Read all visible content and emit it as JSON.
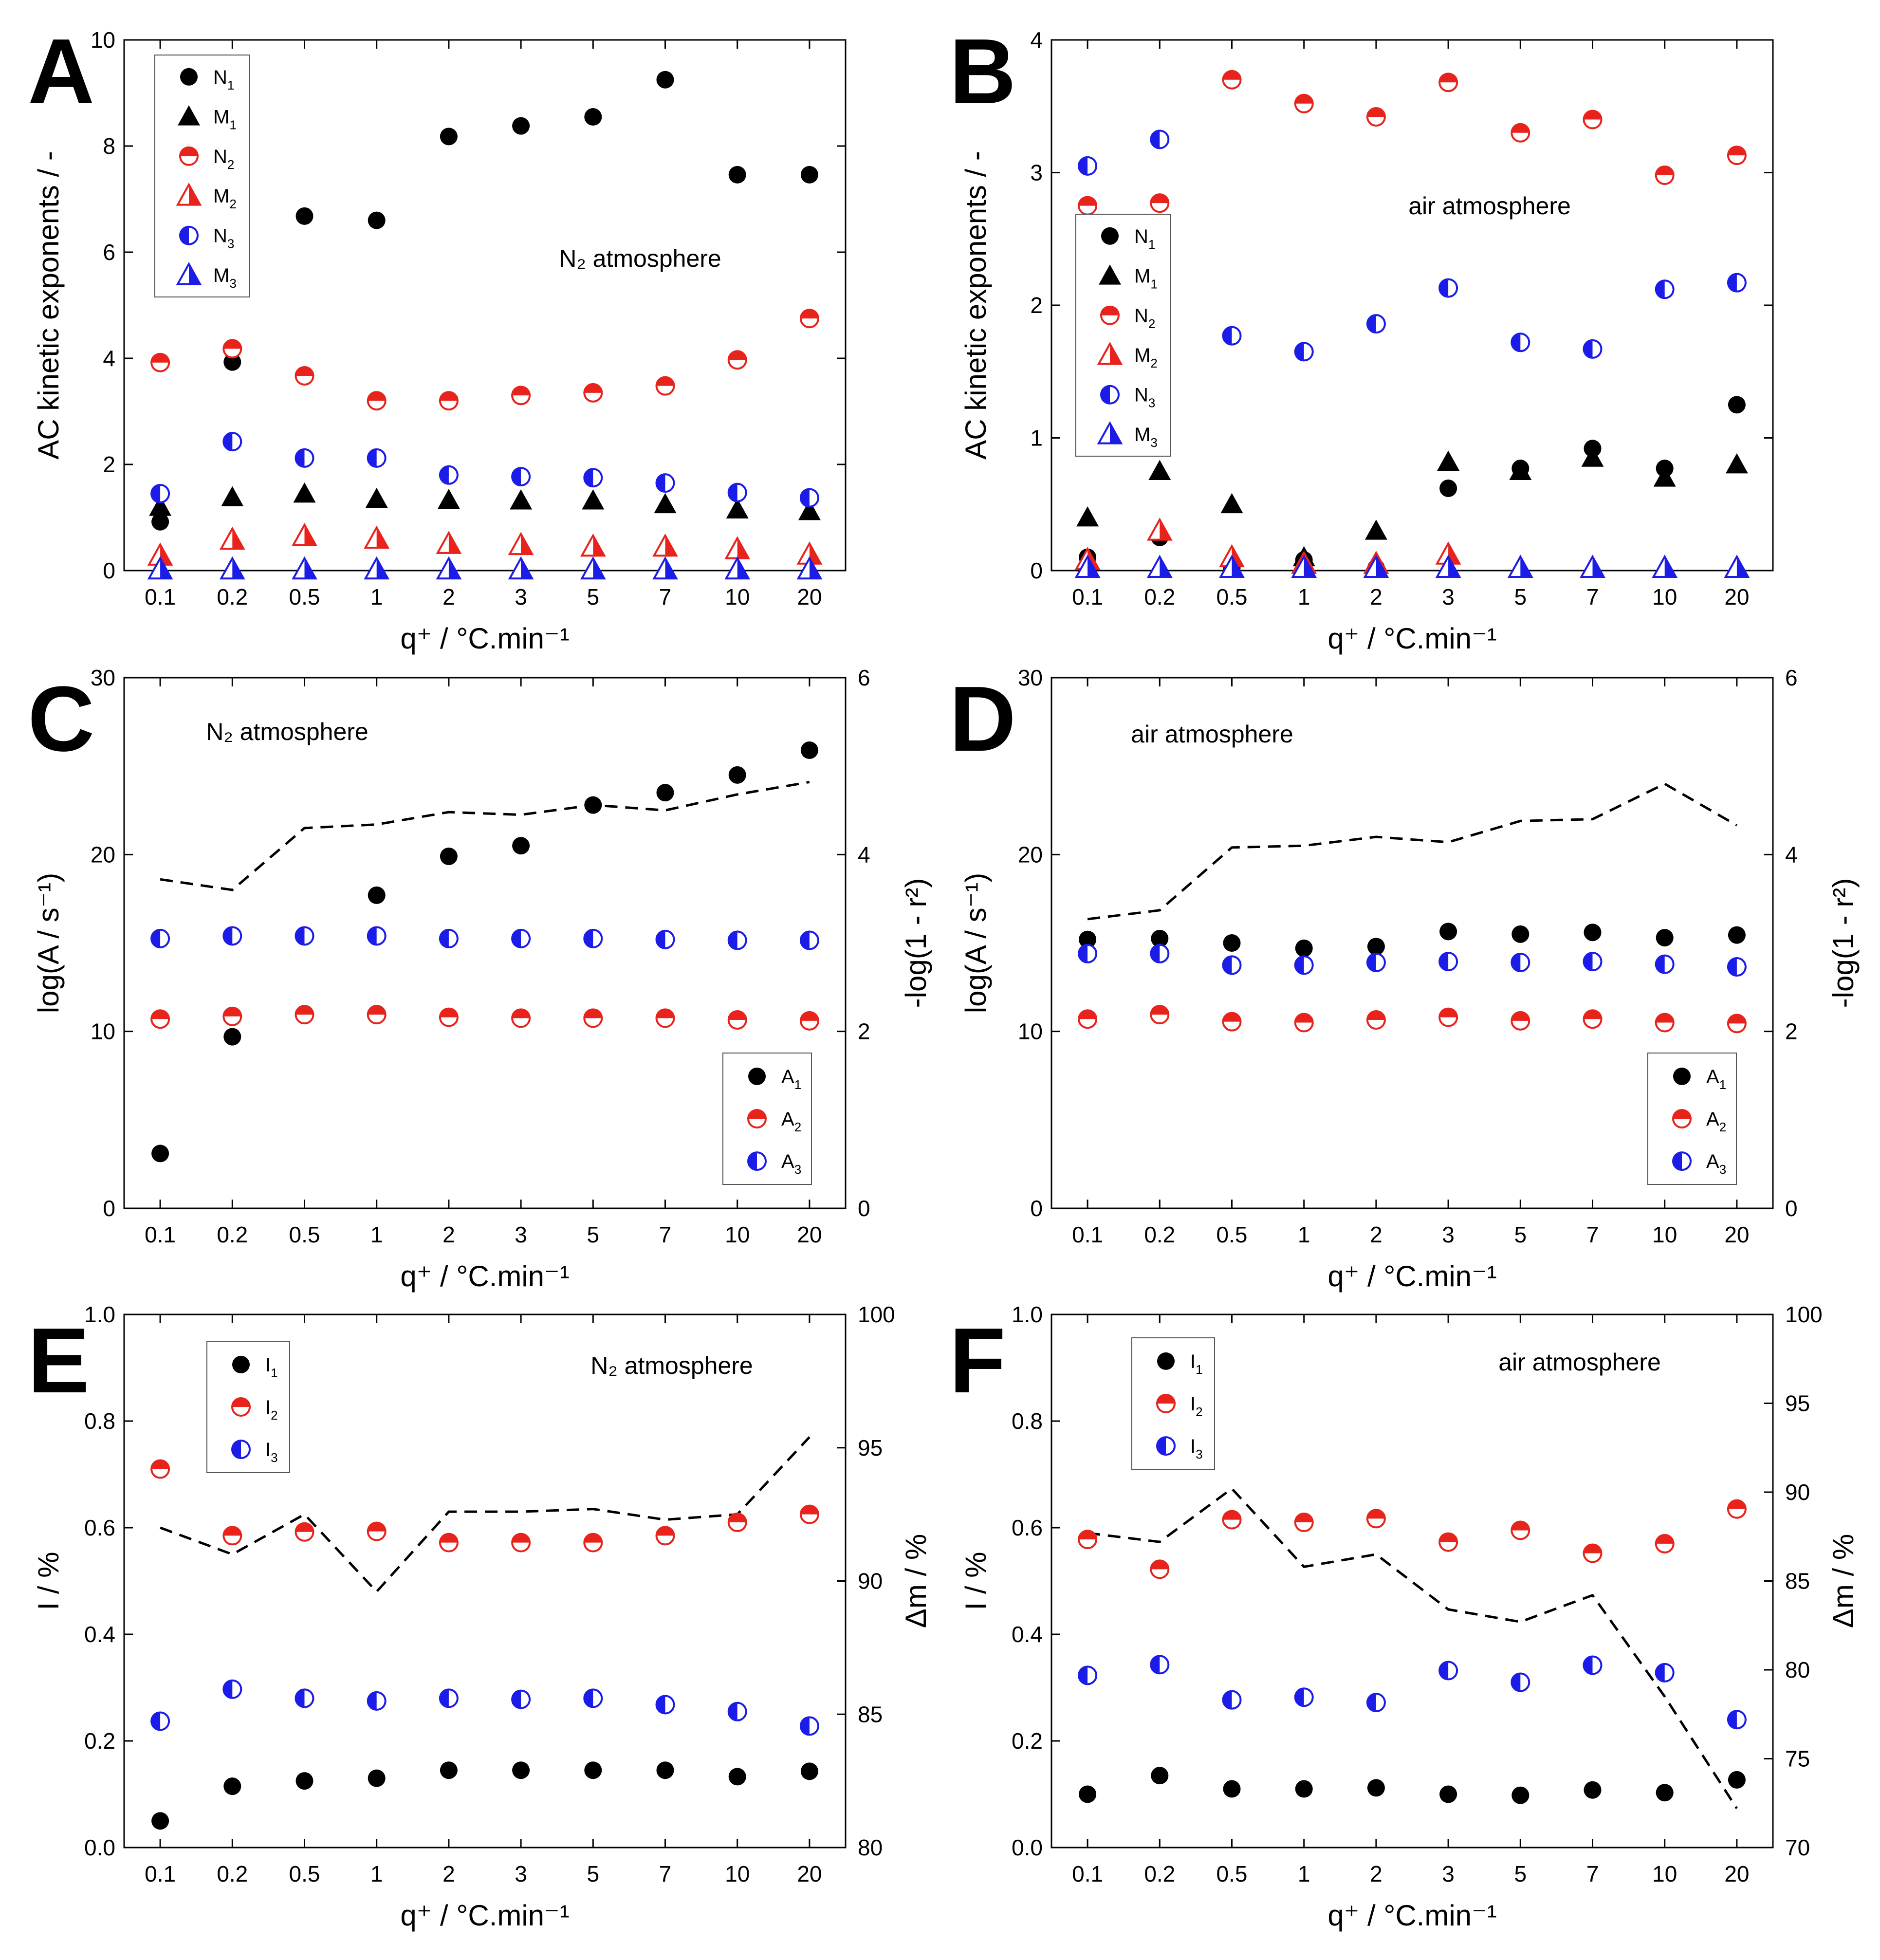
{
  "colors": {
    "black": "#000000",
    "red": "#e8231c",
    "blue": "#1c1ce8"
  },
  "chart_data": [
    {
      "panel": "A",
      "type": "scatter",
      "annotation": "N₂ atmosphere",
      "xlabel": "q⁺   /   °C.min⁻¹",
      "ylabel": "AC kinetic exponents   /   -",
      "categories": [
        "0.1",
        "0.2",
        "0.5",
        "1",
        "2",
        "3",
        "5",
        "7",
        "10",
        "20"
      ],
      "ylim": [
        0,
        10
      ],
      "yticks": [
        "0",
        "2",
        "4",
        "6",
        "8",
        "10"
      ],
      "series": [
        {
          "name": "N₁",
          "marker": "circle-full",
          "color": "black",
          "values": [
            0.92,
            3.93,
            6.68,
            6.6,
            8.18,
            8.38,
            8.55,
            9.25,
            7.46,
            7.46
          ]
        },
        {
          "name": "M₁",
          "marker": "triangle-full",
          "color": "black",
          "values": [
            1.2,
            1.38,
            1.45,
            1.35,
            1.33,
            1.32,
            1.32,
            1.25,
            1.15,
            1.12
          ]
        },
        {
          "name": "N₂",
          "marker": "circle-half-top",
          "color": "red",
          "values": [
            3.92,
            4.18,
            3.67,
            3.2,
            3.2,
            3.3,
            3.35,
            3.48,
            3.97,
            4.75
          ]
        },
        {
          "name": "M₂",
          "marker": "triangle-half",
          "color": "red",
          "values": [
            0.28,
            0.58,
            0.65,
            0.6,
            0.5,
            0.48,
            0.45,
            0.45,
            0.4,
            0.3
          ]
        },
        {
          "name": "N₃",
          "marker": "circle-half-left",
          "color": "blue",
          "values": [
            1.45,
            2.43,
            2.12,
            2.12,
            1.8,
            1.77,
            1.75,
            1.65,
            1.47,
            1.37
          ]
        },
        {
          "name": "M₃",
          "marker": "triangle-half",
          "color": "blue",
          "values": [
            0.02,
            0.02,
            0.02,
            0.02,
            0.02,
            0.02,
            0.02,
            0.02,
            0.02,
            0.02
          ]
        }
      ],
      "legend": [
        "N₁",
        "M₁",
        "N₂",
        "M₂",
        "N₃",
        "M₃"
      ]
    },
    {
      "panel": "B",
      "type": "scatter",
      "annotation": "air atmosphere",
      "xlabel": "q⁺   /   °C.min⁻¹",
      "ylabel": "AC kinetic exponents   /   -",
      "categories": [
        "0.1",
        "0.2",
        "0.5",
        "1",
        "2",
        "3",
        "5",
        "7",
        "10",
        "20"
      ],
      "ylim": [
        0,
        4
      ],
      "yticks": [
        "0",
        "1",
        "2",
        "3",
        "4"
      ],
      "series": [
        {
          "name": "N₁",
          "marker": "circle-full",
          "color": "black",
          "values": [
            0.1,
            0.25,
            0.02,
            0.08,
            0.02,
            0.62,
            0.77,
            0.92,
            0.77,
            1.25
          ]
        },
        {
          "name": "M₁",
          "marker": "triangle-full",
          "color": "black",
          "values": [
            0.4,
            0.75,
            0.5,
            0.1,
            0.3,
            0.82,
            0.75,
            0.85,
            0.7,
            0.8
          ]
        },
        {
          "name": "N₂",
          "marker": "circle-half-top",
          "color": "red",
          "values": [
            2.75,
            2.77,
            3.7,
            3.52,
            3.42,
            3.68,
            3.3,
            3.4,
            2.98,
            3.13
          ]
        },
        {
          "name": "M₂",
          "marker": "triangle-half",
          "color": "red",
          "values": [
            0.08,
            0.3,
            0.1,
            0.05,
            0.05,
            0.12,
            0.02,
            0.02,
            0.02,
            0.02
          ]
        },
        {
          "name": "N₃",
          "marker": "circle-half-left",
          "color": "blue",
          "values": [
            3.05,
            3.25,
            1.77,
            1.65,
            1.86,
            2.13,
            1.72,
            1.67,
            2.12,
            2.17
          ]
        },
        {
          "name": "M₃",
          "marker": "triangle-half",
          "color": "blue",
          "values": [
            0.02,
            0.02,
            0.02,
            0.02,
            0.02,
            0.02,
            0.02,
            0.02,
            0.02,
            0.02
          ]
        }
      ],
      "legend": [
        "N₁",
        "M₁",
        "N₂",
        "M₂",
        "N₃",
        "M₃"
      ]
    },
    {
      "panel": "C",
      "type": "scatter",
      "annotation": "N₂ atmosphere",
      "xlabel": "q⁺   /   °C.min⁻¹",
      "ylabel": "log(A / s⁻¹)",
      "ylabel_right": "-log(1 - r²)",
      "categories": [
        "0.1",
        "0.2",
        "0.5",
        "1",
        "2",
        "3",
        "5",
        "7",
        "10",
        "20"
      ],
      "ylim": [
        0,
        30
      ],
      "yticks": [
        "0",
        "10",
        "20",
        "30"
      ],
      "y2lim": [
        0,
        6
      ],
      "y2ticks": [
        "0",
        "2",
        "4",
        "6"
      ],
      "series": [
        {
          "name": "A₁",
          "marker": "circle-full",
          "color": "black",
          "values": [
            3.1,
            9.7,
            15.4,
            17.7,
            19.9,
            20.5,
            22.8,
            23.5,
            24.5,
            25.9
          ]
        },
        {
          "name": "A₂",
          "marker": "circle-half-top",
          "color": "red",
          "values": [
            10.7,
            10.85,
            10.95,
            10.95,
            10.8,
            10.75,
            10.75,
            10.75,
            10.65,
            10.6
          ]
        },
        {
          "name": "A₃",
          "marker": "circle-half-left",
          "color": "blue",
          "values": [
            15.25,
            15.4,
            15.4,
            15.4,
            15.25,
            15.25,
            15.25,
            15.2,
            15.15,
            15.15
          ]
        }
      ],
      "dashed_series": {
        "name": "-log(1 - r²)",
        "axis": "right",
        "values": [
          3.72,
          3.6,
          4.3,
          4.34,
          4.48,
          4.45,
          4.56,
          4.5,
          4.68,
          4.82
        ]
      },
      "legend": [
        "A₁",
        "A₂",
        "A₃"
      ]
    },
    {
      "panel": "D",
      "type": "scatter",
      "annotation": "air atmosphere",
      "xlabel": "q⁺   /   °C.min⁻¹",
      "ylabel": "log(A / s⁻¹)",
      "ylabel_right": "-log(1 - r²)",
      "categories": [
        "0.1",
        "0.2",
        "0.5",
        "1",
        "2",
        "3",
        "5",
        "7",
        "10",
        "20"
      ],
      "ylim": [
        0,
        30
      ],
      "yticks": [
        "0",
        "10",
        "20",
        "30"
      ],
      "y2lim": [
        0,
        6
      ],
      "y2ticks": [
        "0",
        "2",
        "4",
        "6"
      ],
      "series": [
        {
          "name": "A₁",
          "marker": "circle-full",
          "color": "black",
          "values": [
            15.2,
            15.25,
            15.0,
            14.7,
            14.8,
            15.65,
            15.5,
            15.6,
            15.3,
            15.45
          ]
        },
        {
          "name": "A₂",
          "marker": "circle-half-top",
          "color": "red",
          "values": [
            10.7,
            10.95,
            10.55,
            10.5,
            10.65,
            10.8,
            10.6,
            10.7,
            10.5,
            10.45
          ]
        },
        {
          "name": "A₃",
          "marker": "circle-half-left",
          "color": "blue",
          "values": [
            14.4,
            14.4,
            13.75,
            13.75,
            13.9,
            13.95,
            13.9,
            13.95,
            13.8,
            13.65
          ]
        }
      ],
      "dashed_series": {
        "name": "-log(1 - r²)",
        "axis": "right",
        "values": [
          3.27,
          3.37,
          4.08,
          4.1,
          4.2,
          4.14,
          4.38,
          4.4,
          4.8,
          4.33
        ]
      },
      "legend": [
        "A₁",
        "A₂",
        "A₃"
      ]
    },
    {
      "panel": "E",
      "type": "scatter",
      "annotation": "N₂ atmosphere",
      "xlabel": "q⁺   /   °C.min⁻¹",
      "ylabel": "I   /   %",
      "ylabel_right": "Δm   /   %",
      "categories": [
        "0.1",
        "0.2",
        "0.5",
        "1",
        "2",
        "3",
        "5",
        "7",
        "10",
        "20"
      ],
      "ylim": [
        0,
        1
      ],
      "yticks": [
        "0.0",
        "0.2",
        "0.4",
        "0.6",
        "0.8",
        "1.0"
      ],
      "y2lim": [
        80,
        100
      ],
      "y2ticks": [
        "80",
        "85",
        "90",
        "95",
        "100"
      ],
      "series": [
        {
          "name": "I₁",
          "marker": "circle-full",
          "color": "black",
          "values": [
            0.05,
            0.115,
            0.125,
            0.13,
            0.145,
            0.145,
            0.145,
            0.145,
            0.133,
            0.143
          ]
        },
        {
          "name": "I₂",
          "marker": "circle-half-top",
          "color": "red",
          "values": [
            0.71,
            0.585,
            0.592,
            0.593,
            0.572,
            0.572,
            0.572,
            0.585,
            0.61,
            0.625
          ]
        },
        {
          "name": "I₃",
          "marker": "circle-half-left",
          "color": "blue",
          "values": [
            0.237,
            0.297,
            0.28,
            0.275,
            0.28,
            0.278,
            0.28,
            0.268,
            0.255,
            0.228
          ]
        }
      ],
      "dashed_series": {
        "name": "Δm",
        "axis": "right",
        "values": [
          92.0,
          91.0,
          92.5,
          89.6,
          92.6,
          92.6,
          92.7,
          92.3,
          92.5,
          95.4
        ]
      },
      "legend": [
        "I₁",
        "I₂",
        "I₃"
      ]
    },
    {
      "panel": "F",
      "type": "scatter",
      "annotation": "air atmosphere",
      "xlabel": "q⁺   /   °C.min⁻¹",
      "ylabel": "I   /   %",
      "ylabel_right": "Δm   /   %",
      "categories": [
        "0.1",
        "0.2",
        "0.5",
        "1",
        "2",
        "3",
        "5",
        "7",
        "10",
        "20"
      ],
      "ylim": [
        0,
        1
      ],
      "yticks": [
        "0.0",
        "0.2",
        "0.4",
        "0.6",
        "0.8",
        "1.0"
      ],
      "y2lim": [
        70,
        100
      ],
      "y2ticks": [
        "70",
        "75",
        "80",
        "85",
        "90",
        "95",
        "100"
      ],
      "series": [
        {
          "name": "I₁",
          "marker": "circle-full",
          "color": "black",
          "values": [
            0.1,
            0.135,
            0.11,
            0.11,
            0.112,
            0.1,
            0.098,
            0.108,
            0.103,
            0.127
          ]
        },
        {
          "name": "I₂",
          "marker": "circle-half-top",
          "color": "red",
          "values": [
            0.578,
            0.522,
            0.615,
            0.61,
            0.617,
            0.573,
            0.595,
            0.552,
            0.57,
            0.635
          ]
        },
        {
          "name": "I₃",
          "marker": "circle-half-left",
          "color": "blue",
          "values": [
            0.323,
            0.343,
            0.277,
            0.282,
            0.272,
            0.332,
            0.31,
            0.342,
            0.328,
            0.24
          ]
        }
      ],
      "dashed_series": {
        "name": "Δm",
        "axis": "right",
        "values": [
          87.7,
          87.2,
          90.2,
          85.8,
          86.5,
          83.4,
          82.7,
          84.2,
          78.5,
          72.2
        ]
      },
      "legend": [
        "I₁",
        "I₂",
        "I₃"
      ]
    }
  ]
}
